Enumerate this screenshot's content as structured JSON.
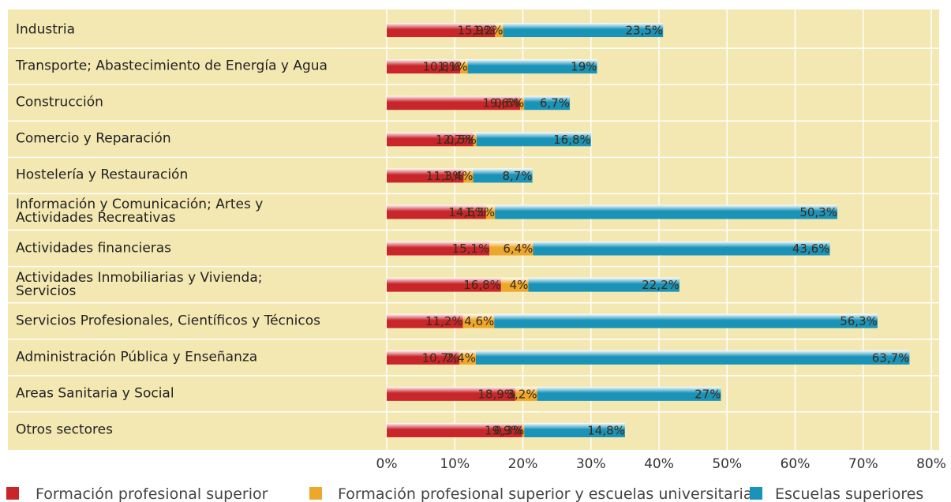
{
  "chart_data": {
    "type": "stacked-barh",
    "categories": [
      "Industria",
      "Transporte; Abastecimiento de Energía y Agua",
      "Construcción",
      "Comercio y Reparación",
      "Hostelería y Restauración",
      "Información y Comunicación; Artes y\nActividades Recreativas",
      "Actividades financieras",
      "Actividades Inmobiliarias y Vivienda;\nServicios",
      "Servicios Profesionales, Científicos y Técnicos",
      "Administración Pública y Enseñanza",
      "Areas Sanitaria y Social",
      "Otros sectores"
    ],
    "series": [
      {
        "name": "Formación profesional superior",
        "color": "#c8262b",
        "values": [
          15.9,
          10.8,
          19.6,
          12.7,
          11.3,
          14.6,
          15.1,
          16.8,
          11.2,
          10.7,
          18.9,
          19.9
        ],
        "value_labels": [
          "15,9%",
          "10,8%",
          "19,6%",
          "12,7%",
          "11,3%",
          "14,6%",
          "15,1%",
          "16,8%",
          "11,2%",
          "10,7%",
          "18,9%",
          "19,9%"
        ]
      },
      {
        "name": "Formación profesional superior y escuelas universitarias",
        "color": "#eda72a",
        "values": [
          1.2,
          1.1,
          0.6,
          0.5,
          1.4,
          1.3,
          6.4,
          4,
          4.6,
          2.4,
          3.2,
          0.3
        ],
        "value_labels": [
          "1,2%",
          "1,1%",
          "0,6%",
          "0,5%",
          "1,4%",
          "1,3%",
          "6,4%",
          "4%",
          "4,6%",
          "2,4%",
          "3,2%",
          "0,3%"
        ]
      },
      {
        "name": "Escuelas superiores",
        "color": "#1a93b8",
        "values": [
          23.5,
          19,
          6.7,
          16.8,
          8.7,
          50.3,
          43.6,
          22.2,
          56.3,
          63.7,
          27,
          14.8
        ],
        "value_labels": [
          "23,5%",
          "19%",
          "6,7%",
          "16,8%",
          "8,7%",
          "50,3%",
          "43,6%",
          "22,2%",
          "56,3%",
          "63,7%",
          "27%",
          "14,8%"
        ]
      }
    ],
    "xlim": [
      0,
      80
    ],
    "xticks": [
      {
        "value": 0,
        "label": "0%"
      },
      {
        "value": 10,
        "label": "10%"
      },
      {
        "value": 20,
        "label": "20%"
      },
      {
        "value": 30,
        "label": "30%"
      },
      {
        "value": 40,
        "label": "40%"
      },
      {
        "value": 50,
        "label": "50%"
      },
      {
        "value": 60,
        "label": "60%"
      },
      {
        "value": 70,
        "label": "70%"
      },
      {
        "value": 80,
        "label": "80%"
      }
    ],
    "grid": true
  }
}
